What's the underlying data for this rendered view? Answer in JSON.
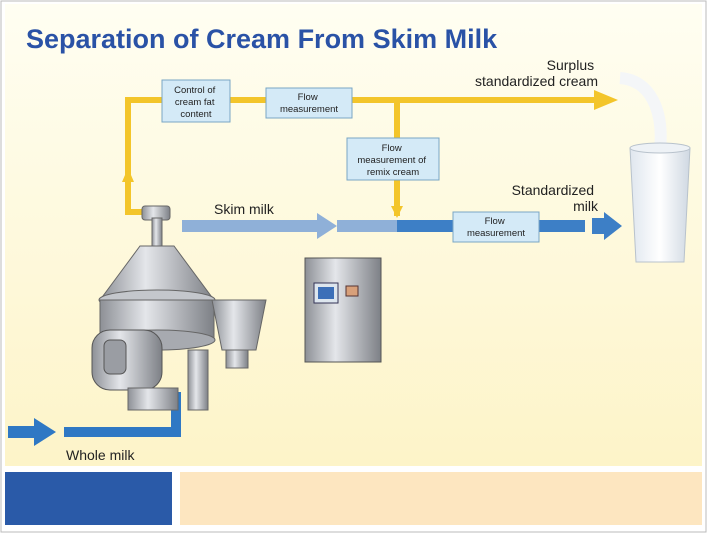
{
  "title": "Separation of Cream From Skim Milk",
  "labels": {
    "surplus_cream": [
      "Surplus",
      "standardized cream"
    ],
    "standardized_milk": [
      "Standardized",
      "milk"
    ],
    "skim_milk": "Skim milk",
    "whole_milk": "Whole milk"
  },
  "boxes": [
    {
      "lines": [
        "Control of",
        "cream fat",
        "content"
      ]
    },
    {
      "lines": [
        "Flow",
        "measurement"
      ]
    },
    {
      "lines": [
        "Flow",
        "measurement of",
        "remix cream"
      ]
    },
    {
      "lines": [
        "Flow",
        "measurement"
      ]
    }
  ]
}
